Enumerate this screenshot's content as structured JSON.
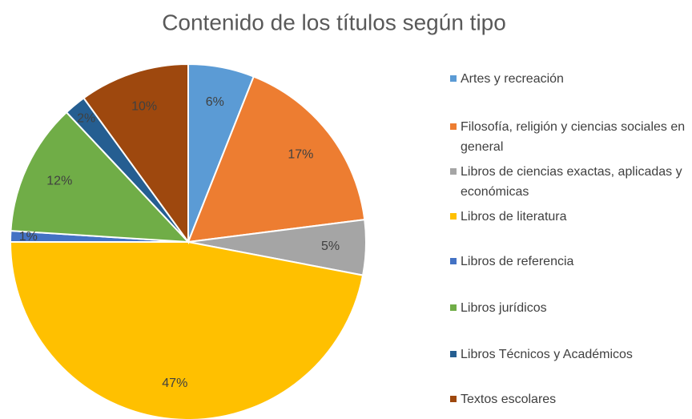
{
  "chart_data": {
    "type": "pie",
    "title": "Contenido de los títulos según tipo",
    "categories": [
      "Artes y recreación",
      "Filosofía, religión y ciencias sociales en general",
      "Libros de ciencias exactas, aplicadas y económicas",
      "Libros de literatura",
      "Libros de referencia",
      "Libros jurídicos",
      "Libros Técnicos y Académicos",
      "Textos escolares"
    ],
    "values": [
      6,
      17,
      5,
      47,
      1,
      12,
      2,
      10
    ],
    "value_labels": [
      "6%",
      "17%",
      "5%",
      "47%",
      "1%",
      "12%",
      "2%",
      "10%"
    ],
    "colors": [
      "#5b9bd5",
      "#ed7d31",
      "#a5a5a5",
      "#ffc000",
      "#4472c4",
      "#70ad47",
      "#255e91",
      "#9e480e"
    ],
    "legend": "right"
  }
}
